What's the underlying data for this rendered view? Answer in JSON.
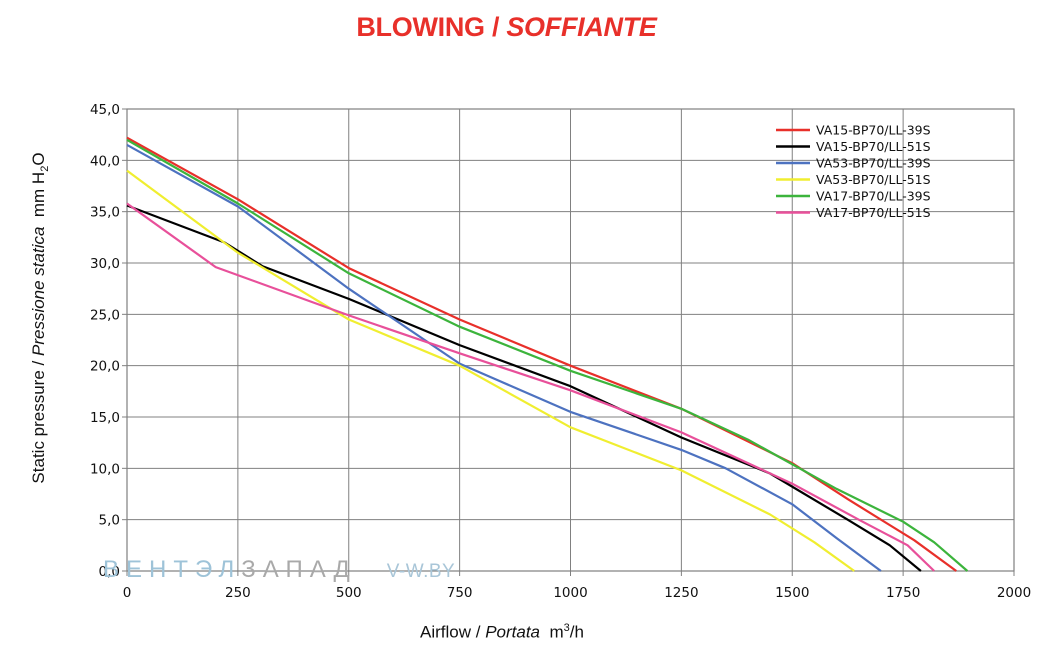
{
  "chart_data": {
    "type": "line",
    "title": {
      "main": "BLOWING / ",
      "italic": "SOFFIANTE"
    },
    "ylabel": {
      "prefix": "Static pressure / ",
      "italic": "Pressione statica",
      "unit": "mm  H",
      "sub": "2",
      "suffix": "O"
    },
    "xlabel": {
      "prefix": "Airflow / ",
      "italic": "Portata",
      "unit": "m",
      "sup": "3",
      "suffix": "/h"
    },
    "xlim": [
      0,
      2000
    ],
    "ylim": [
      0,
      45
    ],
    "xticks": [
      "0",
      "250",
      "500",
      "750",
      "1000",
      "1250",
      "1500",
      "1750",
      "2000"
    ],
    "yticks": [
      "0,0",
      "5,0",
      "10,0",
      "15,0",
      "20,0",
      "25,0",
      "30,0",
      "35,0",
      "40,0",
      "45,0"
    ],
    "grid": true,
    "legend_position": "top-right",
    "series": [
      {
        "name": "VA15-BP70/LL-39S",
        "color": "#e8302a",
        "x": [
          0,
          250,
          500,
          750,
          1000,
          1250,
          1500,
          1625,
          1775,
          1870
        ],
        "y": [
          42.2,
          36.2,
          29.5,
          24.5,
          20.0,
          15.8,
          10.5,
          7.0,
          3.0,
          0.0
        ]
      },
      {
        "name": "VA15-BP70/LL-51S",
        "color": "#000000",
        "x": [
          0,
          220,
          305,
          500,
          750,
          1000,
          1250,
          1450,
          1625,
          1720,
          1790
        ],
        "y": [
          35.6,
          32.0,
          29.7,
          26.5,
          22.0,
          18.0,
          13.0,
          9.5,
          5.0,
          2.5,
          0.0
        ]
      },
      {
        "name": "VA53-BP70/LL-39S",
        "color": "#4d72c0",
        "x": [
          0,
          250,
          500,
          750,
          1000,
          1250,
          1350,
          1500,
          1600,
          1700
        ],
        "y": [
          41.5,
          35.5,
          27.5,
          20.2,
          15.5,
          11.8,
          10.0,
          6.5,
          3.2,
          0.0
        ]
      },
      {
        "name": "VA53-BP70/LL-51S",
        "color": "#f0ee30",
        "x": [
          0,
          250,
          500,
          750,
          1000,
          1250,
          1450,
          1550,
          1640
        ],
        "y": [
          39.0,
          31.0,
          24.5,
          20.0,
          14.0,
          9.8,
          5.5,
          2.8,
          0.0
        ]
      },
      {
        "name": "VA17-BP70/LL-39S",
        "color": "#3cb43c",
        "x": [
          0,
          250,
          500,
          750,
          1000,
          1250,
          1400,
          1600,
          1750,
          1820,
          1895
        ],
        "y": [
          42.0,
          35.8,
          29.0,
          23.8,
          19.5,
          15.8,
          12.8,
          8.0,
          4.8,
          2.8,
          0.0
        ]
      },
      {
        "name": "VA17-BP70/LL-51S",
        "color": "#e8509a",
        "x": [
          0,
          200,
          500,
          750,
          1000,
          1250,
          1500,
          1650,
          1760,
          1820
        ],
        "y": [
          35.8,
          29.6,
          24.9,
          21.2,
          17.6,
          13.5,
          8.5,
          5.0,
          2.5,
          0.0
        ]
      }
    ]
  },
  "watermark": {
    "part1": "ВЕНТЭЛ",
    "part2": "ЗАПАД",
    "site": "V-W.BY"
  }
}
